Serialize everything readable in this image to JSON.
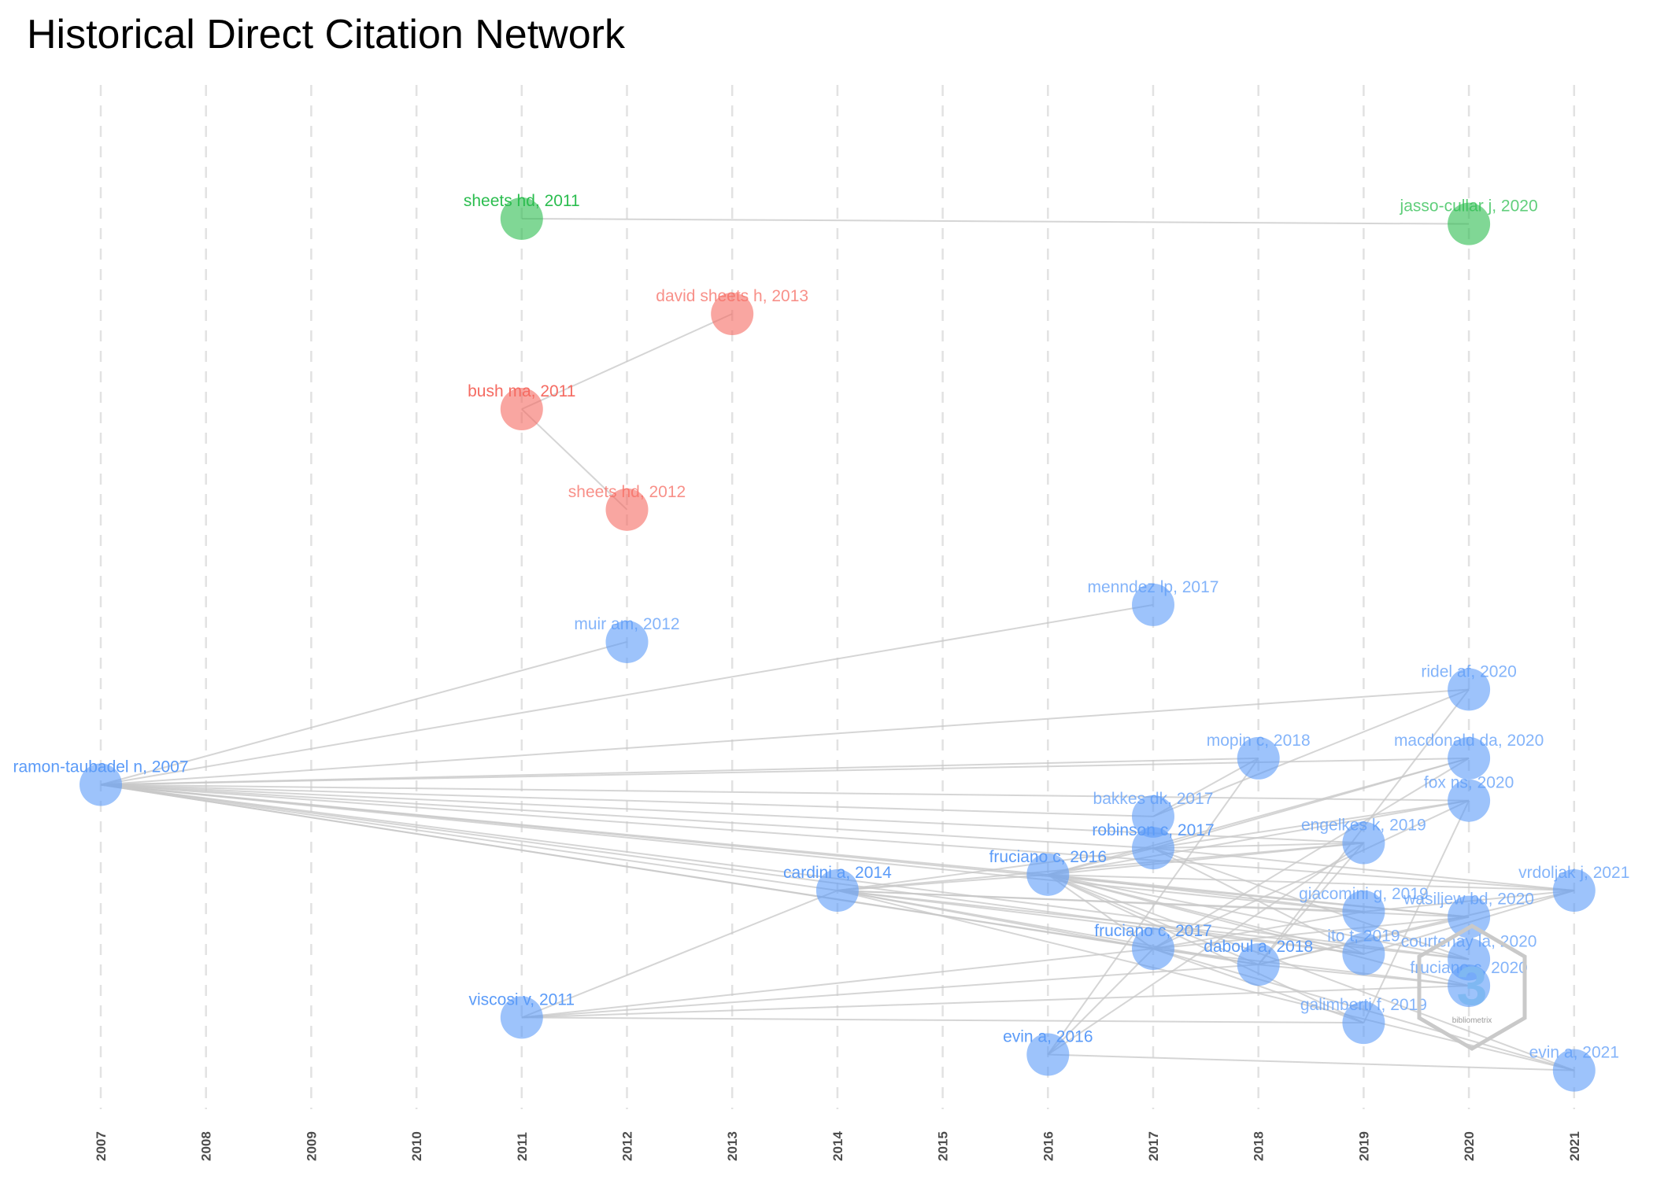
{
  "title": "Historical Direct Citation Network",
  "colors": {
    "group1": "#5b9bf8",
    "group2": "#f56b62",
    "group3": "#2bbd4f",
    "edge": "#c8c8c8",
    "grid": "#e2e2e2"
  },
  "watermark": {
    "glyph": "3",
    "caption": "bibliometrix"
  },
  "chart_data": {
    "type": "network",
    "title": "Historical Direct Citation Network",
    "x_axis": {
      "label": "",
      "ticks": [
        2007,
        2008,
        2009,
        2010,
        2011,
        2012,
        2013,
        2014,
        2015,
        2016,
        2017,
        2018,
        2019,
        2020,
        2021
      ],
      "range": [
        2007,
        2021
      ]
    },
    "grid": "vertical-dashed",
    "nodes": [
      {
        "id": "sheets hd, 2011",
        "year": 2011,
        "group": 3,
        "level": 0.11,
        "bold": true
      },
      {
        "id": "jasso-cullar j, 2020",
        "year": 2020,
        "group": 3,
        "level": 0.115,
        "bold": false
      },
      {
        "id": "david sheets h, 2013",
        "year": 2013,
        "group": 2,
        "level": 0.2,
        "bold": false
      },
      {
        "id": "bush ma, 2011",
        "year": 2011,
        "group": 2,
        "level": 0.29,
        "bold": true
      },
      {
        "id": "sheets hd, 2012",
        "year": 2012,
        "group": 2,
        "level": 0.385,
        "bold": false
      },
      {
        "id": "menndez lp, 2017",
        "year": 2017,
        "group": 1,
        "level": 0.475,
        "bold": false
      },
      {
        "id": "muir am, 2012",
        "year": 2012,
        "group": 1,
        "level": 0.51,
        "bold": false
      },
      {
        "id": "ridel af, 2020",
        "year": 2020,
        "group": 1,
        "level": 0.555,
        "bold": false
      },
      {
        "id": "ramon-taubadel n, 2007",
        "year": 2007,
        "group": 1,
        "level": 0.645,
        "bold": true
      },
      {
        "id": "mopin c, 2018",
        "year": 2018,
        "group": 1,
        "level": 0.62,
        "bold": false
      },
      {
        "id": "macdonald da, 2020",
        "year": 2020,
        "group": 1,
        "level": 0.62,
        "bold": false
      },
      {
        "id": "fox ns, 2020",
        "year": 2020,
        "group": 1,
        "level": 0.66,
        "bold": false
      },
      {
        "id": "bakkes dk, 2017",
        "year": 2017,
        "group": 1,
        "level": 0.675,
        "bold": false
      },
      {
        "id": "robinson c, 2017",
        "year": 2017,
        "group": 1,
        "level": 0.705,
        "bold": true
      },
      {
        "id": "engelkes k, 2019",
        "year": 2019,
        "group": 1,
        "level": 0.7,
        "bold": false
      },
      {
        "id": "fruciano c, 2016",
        "year": 2016,
        "group": 1,
        "level": 0.73,
        "bold": true
      },
      {
        "id": "cardini a, 2014",
        "year": 2014,
        "group": 1,
        "level": 0.745,
        "bold": true
      },
      {
        "id": "vrdoljak j, 2021",
        "year": 2021,
        "group": 1,
        "level": 0.745,
        "bold": false
      },
      {
        "id": "giacomini g, 2019",
        "year": 2019,
        "group": 1,
        "level": 0.765,
        "bold": false
      },
      {
        "id": "wasiljew bd, 2020",
        "year": 2020,
        "group": 1,
        "level": 0.77,
        "bold": false
      },
      {
        "id": "fruciano c, 2017",
        "year": 2017,
        "group": 1,
        "level": 0.8,
        "bold": true
      },
      {
        "id": "ito t, 2019",
        "year": 2019,
        "group": 1,
        "level": 0.805,
        "bold": false
      },
      {
        "id": "daboul a, 2018",
        "year": 2018,
        "group": 1,
        "level": 0.815,
        "bold": true
      },
      {
        "id": "courtenay la, 2020",
        "year": 2020,
        "group": 1,
        "level": 0.81,
        "bold": false
      },
      {
        "id": "fruciano c, 2020",
        "year": 2020,
        "group": 1,
        "level": 0.835,
        "bold": false
      },
      {
        "id": "viscosi v, 2011",
        "year": 2011,
        "group": 1,
        "level": 0.865,
        "bold": true
      },
      {
        "id": "galimberti f, 2019",
        "year": 2019,
        "group": 1,
        "level": 0.87,
        "bold": false
      },
      {
        "id": "evin a, 2016",
        "year": 2016,
        "group": 1,
        "level": 0.9,
        "bold": true
      },
      {
        "id": "evin a, 2021",
        "year": 2021,
        "group": 1,
        "level": 0.915,
        "bold": false
      }
    ],
    "edges": [
      [
        "sheets hd, 2011",
        "jasso-cullar j, 2020"
      ],
      [
        "bush ma, 2011",
        "david sheets h, 2013"
      ],
      [
        "bush ma, 2011",
        "sheets hd, 2012"
      ],
      [
        "ramon-taubadel n, 2007",
        "muir am, 2012"
      ],
      [
        "ramon-taubadel n, 2007",
        "menndez lp, 2017"
      ],
      [
        "ramon-taubadel n, 2007",
        "ridel af, 2020"
      ],
      [
        "ramon-taubadel n, 2007",
        "mopin c, 2018"
      ],
      [
        "ramon-taubadel n, 2007",
        "macdonald da, 2020"
      ],
      [
        "ramon-taubadel n, 2007",
        "fox ns, 2020"
      ],
      [
        "ramon-taubadel n, 2007",
        "bakkes dk, 2017"
      ],
      [
        "ramon-taubadel n, 2007",
        "robinson c, 2017"
      ],
      [
        "ramon-taubadel n, 2007",
        "engelkes k, 2019"
      ],
      [
        "ramon-taubadel n, 2007",
        "fruciano c, 2016"
      ],
      [
        "ramon-taubadel n, 2007",
        "cardini a, 2014"
      ],
      [
        "ramon-taubadel n, 2007",
        "vrdoljak j, 2021"
      ],
      [
        "ramon-taubadel n, 2007",
        "giacomini g, 2019"
      ],
      [
        "ramon-taubadel n, 2007",
        "wasiljew bd, 2020"
      ],
      [
        "ramon-taubadel n, 2007",
        "fruciano c, 2017"
      ],
      [
        "ramon-taubadel n, 2007",
        "daboul a, 2018"
      ],
      [
        "ramon-taubadel n, 2007",
        "ito t, 2019"
      ],
      [
        "ramon-taubadel n, 2007",
        "courtenay la, 2020"
      ],
      [
        "viscosi v, 2011",
        "cardini a, 2014"
      ],
      [
        "viscosi v, 2011",
        "daboul a, 2018"
      ],
      [
        "viscosi v, 2011",
        "fruciano c, 2017"
      ],
      [
        "viscosi v, 2011",
        "galimberti f, 2019"
      ],
      [
        "viscosi v, 2011",
        "fruciano c, 2020"
      ],
      [
        "cardini a, 2014",
        "fruciano c, 2016"
      ],
      [
        "cardini a, 2014",
        "robinson c, 2017"
      ],
      [
        "cardini a, 2014",
        "fruciano c, 2017"
      ],
      [
        "cardini a, 2014",
        "daboul a, 2018"
      ],
      [
        "cardini a, 2014",
        "engelkes k, 2019"
      ],
      [
        "cardini a, 2014",
        "giacomini g, 2019"
      ],
      [
        "cardini a, 2014",
        "ito t, 2019"
      ],
      [
        "cardini a, 2014",
        "wasiljew bd, 2020"
      ],
      [
        "cardini a, 2014",
        "courtenay la, 2020"
      ],
      [
        "cardini a, 2014",
        "evin a, 2021"
      ],
      [
        "fruciano c, 2016",
        "robinson c, 2017"
      ],
      [
        "fruciano c, 2016",
        "fruciano c, 2017"
      ],
      [
        "fruciano c, 2016",
        "daboul a, 2018"
      ],
      [
        "fruciano c, 2016",
        "engelkes k, 2019"
      ],
      [
        "fruciano c, 2016",
        "giacomini g, 2019"
      ],
      [
        "fruciano c, 2016",
        "ito t, 2019"
      ],
      [
        "fruciano c, 2016",
        "galimberti f, 2019"
      ],
      [
        "fruciano c, 2016",
        "courtenay la, 2020"
      ],
      [
        "fruciano c, 2016",
        "fruciano c, 2020"
      ],
      [
        "fruciano c, 2016",
        "wasiljew bd, 2020"
      ],
      [
        "fruciano c, 2016",
        "vrdoljak j, 2021"
      ],
      [
        "fruciano c, 2016",
        "evin a, 2021"
      ],
      [
        "fruciano c, 2016",
        "macdonald da, 2020"
      ],
      [
        "fruciano c, 2016",
        "fox ns, 2020"
      ],
      [
        "robinson c, 2017",
        "engelkes k, 2019"
      ],
      [
        "robinson c, 2017",
        "macdonald da, 2020"
      ],
      [
        "robinson c, 2017",
        "fox ns, 2020"
      ],
      [
        "robinson c, 2017",
        "vrdoljak j, 2021"
      ],
      [
        "robinson c, 2017",
        "ito t, 2019"
      ],
      [
        "robinson c, 2017",
        "courtenay la, 2020"
      ],
      [
        "bakkes dk, 2017",
        "mopin c, 2018"
      ],
      [
        "bakkes dk, 2017",
        "ridel af, 2020"
      ],
      [
        "fruciano c, 2017",
        "giacomini g, 2019"
      ],
      [
        "fruciano c, 2017",
        "wasiljew bd, 2020"
      ],
      [
        "fruciano c, 2017",
        "fruciano c, 2020"
      ],
      [
        "fruciano c, 2017",
        "macdonald da, 2020"
      ],
      [
        "fruciano c, 2017",
        "fox ns, 2020"
      ],
      [
        "fruciano c, 2017",
        "evin a, 2021"
      ],
      [
        "fruciano c, 2017",
        "galimberti f, 2019"
      ],
      [
        "daboul a, 2018",
        "engelkes k, 2019"
      ],
      [
        "daboul a, 2018",
        "ridel af, 2020"
      ],
      [
        "daboul a, 2018",
        "wasiljew bd, 2020"
      ],
      [
        "daboul a, 2018",
        "vrdoljak j, 2021"
      ],
      [
        "daboul a, 2018",
        "fruciano c, 2020"
      ],
      [
        "evin a, 2016",
        "fruciano c, 2017"
      ],
      [
        "evin a, 2016",
        "engelkes k, 2019"
      ],
      [
        "evin a, 2016",
        "mopin c, 2018"
      ],
      [
        "evin a, 2016",
        "evin a, 2021"
      ],
      [
        "giacomini g, 2019",
        "vrdoljak j, 2021"
      ],
      [
        "ito t, 2019",
        "vrdoljak j, 2021"
      ],
      [
        "galimberti f, 2019",
        "fox ns, 2020"
      ]
    ]
  }
}
